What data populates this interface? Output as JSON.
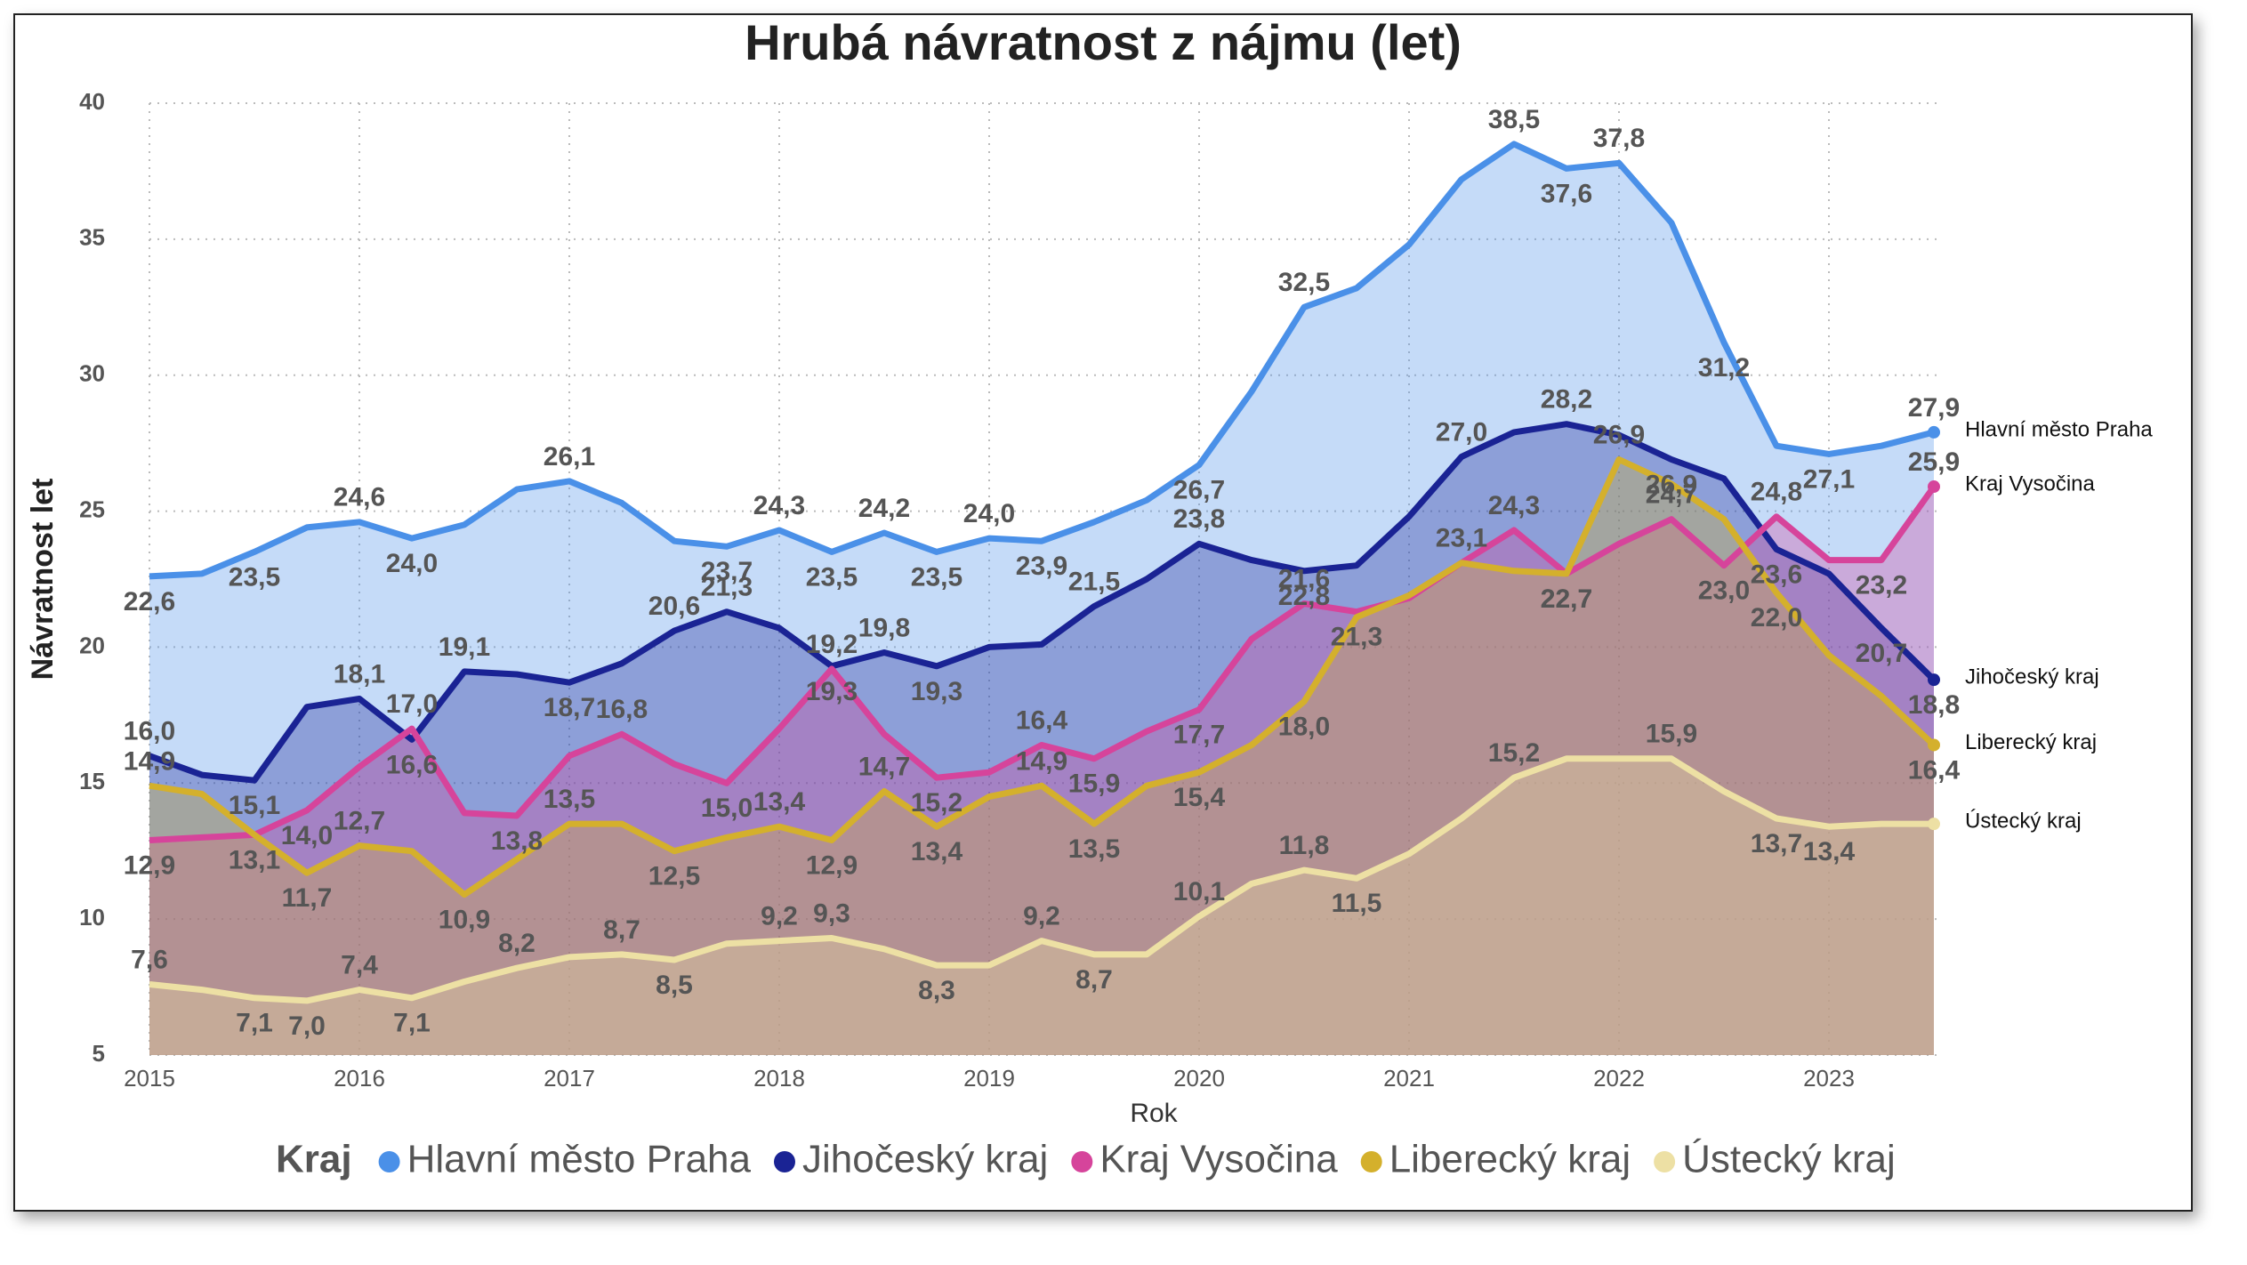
{
  "chart_data": {
    "type": "area",
    "title": "Hrubá návratnost z nájmu (let)",
    "x_label": "Rok",
    "y_label": "Návratnost let",
    "legend_title": "Kraj",
    "x": [
      2015,
      2015.25,
      2015.5,
      2015.75,
      2016,
      2016.25,
      2016.5,
      2016.75,
      2017,
      2017.25,
      2017.5,
      2017.75,
      2018,
      2018.25,
      2018.5,
      2018.75,
      2019,
      2019.25,
      2019.5,
      2019.75,
      2020,
      2020.25,
      2020.5,
      2020.75,
      2021,
      2021.25,
      2021.5,
      2021.75,
      2022,
      2022.25,
      2022.5,
      2022.75,
      2023,
      2023.25,
      2023.5
    ],
    "xlim": [
      2015,
      2023.5
    ],
    "xticks": [
      2015,
      2016,
      2017,
      2018,
      2019,
      2020,
      2021,
      2022,
      2023
    ],
    "ylim": [
      5,
      40
    ],
    "yticks": [
      5,
      10,
      15,
      20,
      25,
      30,
      35,
      40
    ],
    "grid": true,
    "legend": "bottom",
    "series": [
      {
        "name": "Hlavní město Praha",
        "color": "#4a90e8",
        "values": [
          22.6,
          22.7,
          23.5,
          24.4,
          24.6,
          24.0,
          24.5,
          25.8,
          26.1,
          25.3,
          23.9,
          23.7,
          24.3,
          23.5,
          24.2,
          23.5,
          24.0,
          23.9,
          24.6,
          25.4,
          26.7,
          29.4,
          32.5,
          33.2,
          34.8,
          37.2,
          38.5,
          37.6,
          37.8,
          35.6,
          31.2,
          27.4,
          27.1,
          27.4,
          27.9
        ],
        "value_labels": [
          "22,6",
          null,
          "23,5",
          null,
          "24,6",
          "24,0",
          null,
          null,
          "26,1",
          null,
          null,
          "23,7",
          "24,3",
          "23,5",
          "24,2",
          "23,5",
          "24,0",
          "23,9",
          null,
          null,
          "26,7",
          null,
          "32,5",
          null,
          null,
          null,
          "38,5",
          "37,6",
          "37,8",
          null,
          "31,2",
          null,
          "27,1",
          null,
          "27,9"
        ]
      },
      {
        "name": "Jihočeský kraj",
        "color": "#1a2394",
        "values": [
          16.0,
          15.3,
          15.1,
          17.8,
          18.1,
          16.6,
          19.1,
          19.0,
          18.7,
          19.4,
          20.6,
          21.3,
          20.7,
          19.3,
          19.8,
          19.3,
          20.0,
          20.1,
          21.5,
          22.5,
          23.8,
          23.2,
          22.8,
          23.0,
          24.8,
          27.0,
          27.9,
          28.2,
          27.8,
          26.9,
          26.2,
          23.6,
          22.7,
          20.7,
          18.8
        ],
        "value_labels": [
          "16,0",
          null,
          "15,1",
          null,
          "18,1",
          "16,6",
          "19,1",
          null,
          "18,7",
          null,
          "20,6",
          "21,3",
          null,
          "19,3",
          "19,8",
          "19,3",
          null,
          null,
          "21,5",
          null,
          "23,8",
          null,
          "22,8",
          null,
          null,
          "27,0",
          null,
          "28,2",
          null,
          "26,9",
          null,
          "23,6",
          null,
          "20,7",
          "18,8"
        ]
      },
      {
        "name": "Kraj Vysočina",
        "color": "#d6449b",
        "values": [
          12.9,
          13.0,
          13.1,
          14.0,
          15.6,
          17.0,
          13.9,
          13.8,
          16.0,
          16.8,
          15.7,
          15.0,
          17.0,
          19.2,
          16.8,
          15.2,
          15.4,
          16.4,
          15.9,
          16.9,
          17.7,
          20.3,
          21.6,
          21.3,
          21.8,
          23.1,
          24.3,
          22.7,
          23.8,
          24.7,
          23.0,
          24.8,
          23.2,
          23.2,
          25.9
        ],
        "value_labels": [
          "12,9",
          null,
          "13,1",
          "14,0",
          null,
          "17,0",
          null,
          "13,8",
          null,
          "16,8",
          null,
          "15,0",
          null,
          "19,2",
          null,
          "15,2",
          null,
          "16,4",
          "15,9",
          null,
          "17,7",
          null,
          "21,6",
          "21,3",
          null,
          "23,1",
          "24,3",
          "22,7",
          null,
          "24,7",
          "23,0",
          "24,8",
          null,
          "23,2",
          "25,9"
        ]
      },
      {
        "name": "Liberecký kraj",
        "color": "#d4b02c",
        "values": [
          14.9,
          14.6,
          13.1,
          11.7,
          12.7,
          12.5,
          10.9,
          12.2,
          13.5,
          13.5,
          12.5,
          13.0,
          13.4,
          12.9,
          14.7,
          13.4,
          14.5,
          14.9,
          13.5,
          14.9,
          15.4,
          16.4,
          18.0,
          21.1,
          21.9,
          23.1,
          22.8,
          22.7,
          26.9,
          26.0,
          24.7,
          22.0,
          19.7,
          18.2,
          16.4
        ],
        "value_labels": [
          "14,9",
          null,
          null,
          "11,7",
          "12,7",
          null,
          "10,9",
          null,
          "13,5",
          null,
          "12,5",
          null,
          "13,4",
          "12,9",
          "14,7",
          "13,4",
          null,
          "14,9",
          "13,5",
          null,
          "15,4",
          null,
          "18,0",
          null,
          null,
          null,
          null,
          "22,7",
          "26,9",
          null,
          null,
          "22,0",
          null,
          null,
          "16,4"
        ]
      },
      {
        "name": "Ústecký kraj",
        "color": "#ede0a4",
        "values": [
          7.6,
          7.4,
          7.1,
          7.0,
          7.4,
          7.1,
          7.7,
          8.2,
          8.6,
          8.7,
          8.5,
          9.1,
          9.2,
          9.3,
          8.9,
          8.3,
          8.3,
          9.2,
          8.7,
          8.7,
          10.1,
          11.3,
          11.8,
          11.5,
          12.4,
          13.7,
          15.2,
          15.9,
          15.9,
          15.9,
          14.7,
          13.7,
          13.4,
          13.5,
          13.5
        ],
        "value_labels": [
          "7,6",
          null,
          "7,1",
          "7,0",
          "7,4",
          "7,1",
          null,
          "8,2",
          null,
          "8,7",
          "8,5",
          null,
          "9,2",
          "9,3",
          null,
          "8,3",
          null,
          "9,2",
          "8,7",
          null,
          "10,1",
          null,
          "11,8",
          "11,5",
          null,
          null,
          "15,2",
          null,
          null,
          "15,9",
          null,
          "13,7",
          "13,4",
          null,
          null
        ]
      }
    ]
  }
}
